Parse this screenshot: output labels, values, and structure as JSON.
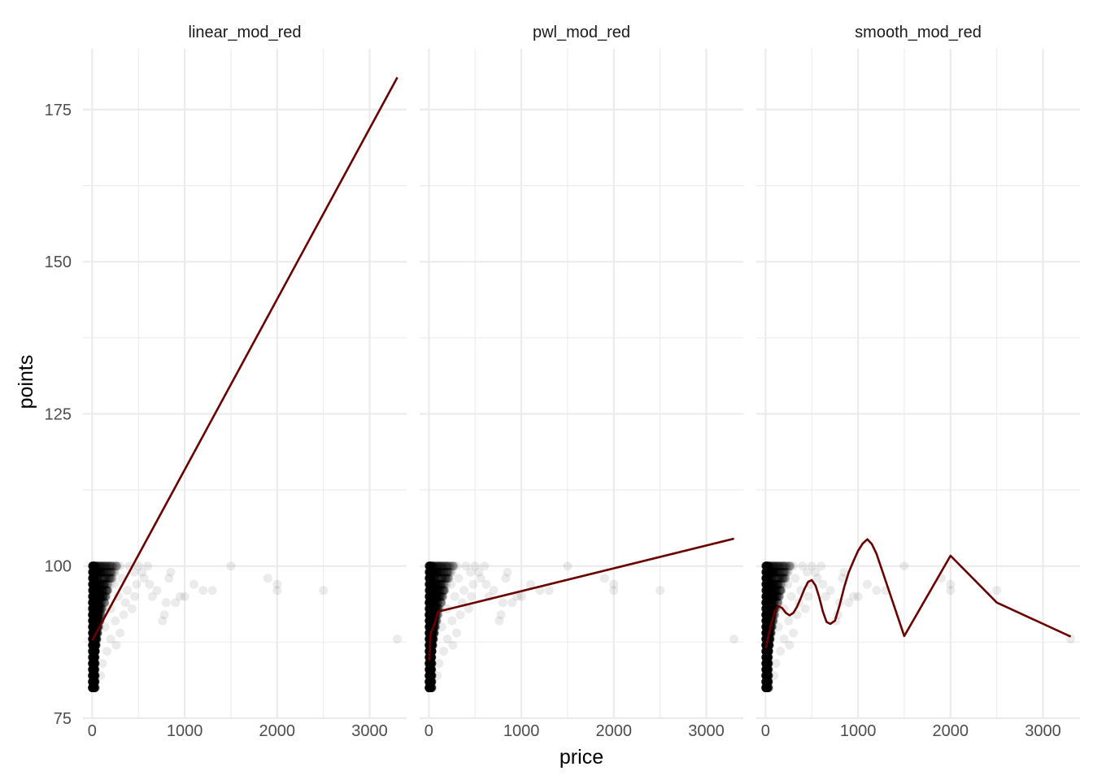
{
  "chart_data": {
    "type": "scatter",
    "facet_by": "model",
    "xlabel": "price",
    "ylabel": "points",
    "xlim": [
      -100,
      3400
    ],
    "ylim": [
      75,
      185
    ],
    "x_ticks": [
      0,
      1000,
      2000,
      3000
    ],
    "y_ticks": [
      75,
      100,
      125,
      150,
      175
    ],
    "grid": true,
    "point_color": "#000000",
    "point_alpha": 0.08,
    "line_color": "#6b0000",
    "panels": [
      {
        "label": "linear_mod_red",
        "line": {
          "x": [
            0,
            3300
          ],
          "y": [
            87.8,
            180.3
          ]
        }
      },
      {
        "label": "pwl_mod_red",
        "line": {
          "x": [
            4,
            20,
            50,
            100,
            3300
          ],
          "y": [
            84.5,
            89,
            90,
            92.5,
            104.5
          ]
        }
      },
      {
        "label": "smooth_mod_red",
        "line": {
          "x": [
            4,
            30,
            60,
            100,
            140,
            180,
            220,
            260,
            300,
            340,
            380,
            420,
            460,
            500,
            540,
            580,
            620,
            660,
            700,
            750,
            800,
            850,
            900,
            950,
            1000,
            1050,
            1100,
            1150,
            1200,
            1300,
            1500,
            2000,
            2500,
            3300
          ],
          "y": [
            86.5,
            88.5,
            90.5,
            92.5,
            93.4,
            93.1,
            92.3,
            91.9,
            92.3,
            93.3,
            94.7,
            96.2,
            97.4,
            97.7,
            96.8,
            94.9,
            92.5,
            90.8,
            90.5,
            91.0,
            93.5,
            96.5,
            99.0,
            100.8,
            102.5,
            103.7,
            104.4,
            103.6,
            102.0,
            97.5,
            88.5,
            101.7,
            94.0,
            88.4
          ]
        }
      }
    ],
    "points": {
      "outliers": [
        [
          1500,
          100
        ],
        [
          1900,
          98
        ],
        [
          2000,
          97
        ],
        [
          2000,
          96
        ],
        [
          2500,
          96
        ],
        [
          3300,
          88
        ],
        [
          1100,
          97
        ],
        [
          1200,
          96
        ],
        [
          1300,
          96
        ],
        [
          1000,
          95
        ],
        [
          850,
          99
        ],
        [
          830,
          98
        ],
        [
          800,
          94
        ],
        [
          780,
          92
        ],
        [
          760,
          91
        ],
        [
          900,
          94
        ],
        [
          950,
          95
        ],
        [
          700,
          96
        ],
        [
          650,
          95
        ],
        [
          620,
          97
        ],
        [
          600,
          100
        ],
        [
          560,
          98
        ],
        [
          540,
          99
        ],
        [
          500,
          100
        ],
        [
          480,
          97
        ],
        [
          460,
          95
        ],
        [
          450,
          99
        ],
        [
          430,
          93
        ],
        [
          400,
          100
        ],
        [
          380,
          96
        ],
        [
          360,
          94
        ],
        [
          340,
          92
        ],
        [
          320,
          98
        ],
        [
          300,
          100
        ],
        [
          300,
          89
        ],
        [
          280,
          95
        ],
        [
          260,
          87
        ],
        [
          250,
          91
        ],
        [
          240,
          97
        ],
        [
          220,
          100
        ],
        [
          200,
          93
        ],
        [
          200,
          88
        ],
        [
          180,
          99
        ],
        [
          160,
          86
        ],
        [
          150,
          95
        ],
        [
          140,
          90
        ],
        [
          120,
          100
        ],
        [
          110,
          84
        ],
        [
          100,
          97
        ],
        [
          90,
          82
        ],
        [
          80,
          100
        ]
      ]
    }
  }
}
